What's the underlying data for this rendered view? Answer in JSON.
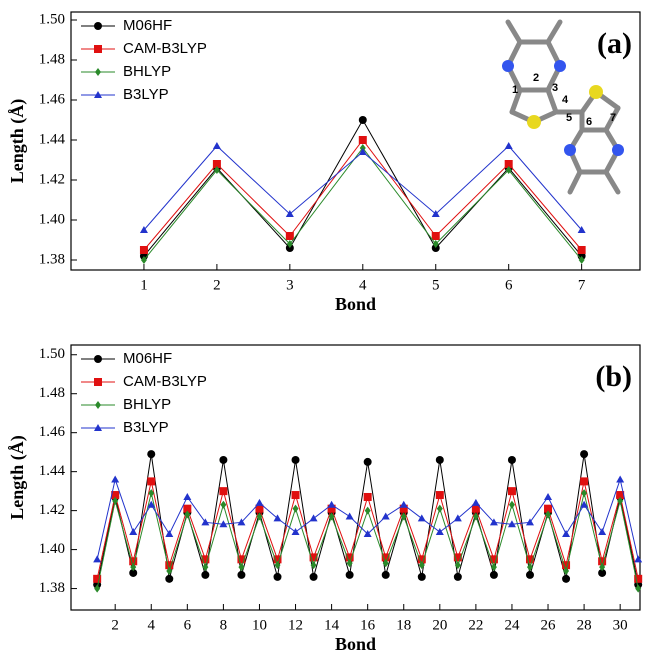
{
  "chart_data": [
    {
      "type": "line",
      "panel_label": "(a)",
      "x_label": "Bond",
      "y_label": "Length (Å)",
      "x": [
        1,
        2,
        3,
        4,
        5,
        6,
        7
      ],
      "xlim": [
        0,
        7.8
      ],
      "xticks": [
        1,
        2,
        3,
        4,
        5,
        6,
        7
      ],
      "ylim": [
        1.375,
        1.504
      ],
      "yticks": [
        1.38,
        {
          "value": 1.4,
          "label": "1.40"
        },
        1.42,
        1.44,
        1.46,
        1.48,
        {
          "value": 1.5,
          "label": "1.50"
        }
      ],
      "legend": "upper left",
      "inset_atom_labels": [
        "1",
        "2",
        "3",
        "4",
        "5",
        "6",
        "7"
      ],
      "series": [
        {
          "name": "M06HF",
          "color": "#000000",
          "marker": "circle",
          "values": [
            1.382,
            1.426,
            1.386,
            1.45,
            1.386,
            1.426,
            1.382
          ]
        },
        {
          "name": "CAM-B3LYP",
          "color": "#e01010",
          "marker": "square",
          "values": [
            1.385,
            1.428,
            1.392,
            1.44,
            1.392,
            1.428,
            1.385
          ]
        },
        {
          "name": "BHLYP",
          "color": "#2a8a2a",
          "marker": "diamond",
          "values": [
            1.38,
            1.425,
            1.388,
            1.436,
            1.388,
            1.425,
            1.38
          ]
        },
        {
          "name": "B3LYP",
          "color": "#2233cc",
          "marker": "triangle",
          "values": [
            1.395,
            1.437,
            1.403,
            1.434,
            1.403,
            1.437,
            1.395
          ]
        }
      ]
    },
    {
      "type": "line",
      "panel_label": "(b)",
      "x_label": "Bond",
      "y_label": "Length (Å)",
      "x": [
        1,
        2,
        3,
        4,
        5,
        6,
        7,
        8,
        9,
        10,
        11,
        12,
        13,
        14,
        15,
        16,
        17,
        18,
        19,
        20,
        21,
        22,
        23,
        24,
        25,
        26,
        27,
        28,
        29,
        30,
        31
      ],
      "xlim": [
        -0.45,
        31.1
      ],
      "xticks": [
        2,
        4,
        6,
        8,
        10,
        12,
        14,
        16,
        18,
        20,
        22,
        24,
        26,
        28,
        30
      ],
      "ylim": [
        1.369,
        1.505
      ],
      "yticks": [
        1.38,
        {
          "value": 1.4,
          "label": "1.40"
        },
        1.42,
        1.44,
        1.46,
        1.48,
        {
          "value": 1.5,
          "label": "1.50"
        }
      ],
      "legend": "upper left",
      "series": [
        {
          "name": "M06HF",
          "color": "#000000",
          "marker": "circle",
          "values": [
            1.382,
            1.427,
            1.388,
            1.449,
            1.385,
            1.419,
            1.387,
            1.446,
            1.387,
            1.419,
            1.386,
            1.446,
            1.386,
            1.419,
            1.387,
            1.445,
            1.387,
            1.419,
            1.386,
            1.446,
            1.386,
            1.419,
            1.387,
            1.446,
            1.387,
            1.419,
            1.385,
            1.449,
            1.388,
            1.427,
            1.382
          ]
        },
        {
          "name": "CAM-B3LYP",
          "color": "#e01010",
          "marker": "square",
          "values": [
            1.385,
            1.428,
            1.394,
            1.435,
            1.392,
            1.421,
            1.395,
            1.43,
            1.395,
            1.421,
            1.395,
            1.428,
            1.396,
            1.421,
            1.396,
            1.427,
            1.396,
            1.421,
            1.395,
            1.428,
            1.396,
            1.421,
            1.395,
            1.43,
            1.395,
            1.421,
            1.392,
            1.435,
            1.394,
            1.428,
            1.385
          ]
        },
        {
          "name": "BHLYP",
          "color": "#2a8a2a",
          "marker": "diamond",
          "values": [
            1.38,
            1.425,
            1.391,
            1.429,
            1.389,
            1.418,
            1.391,
            1.423,
            1.391,
            1.417,
            1.392,
            1.421,
            1.392,
            1.417,
            1.393,
            1.42,
            1.393,
            1.417,
            1.392,
            1.421,
            1.392,
            1.417,
            1.391,
            1.423,
            1.391,
            1.418,
            1.389,
            1.429,
            1.391,
            1.425,
            1.38
          ]
        },
        {
          "name": "B3LYP",
          "color": "#2233cc",
          "marker": "triangle",
          "values": [
            1.395,
            1.436,
            1.409,
            1.423,
            1.408,
            1.427,
            1.414,
            1.413,
            1.414,
            1.424,
            1.416,
            1.409,
            1.416,
            1.423,
            1.417,
            1.408,
            1.417,
            1.423,
            1.416,
            1.409,
            1.416,
            1.424,
            1.414,
            1.413,
            1.414,
            1.427,
            1.408,
            1.423,
            1.409,
            1.436,
            1.395
          ]
        }
      ]
    }
  ]
}
